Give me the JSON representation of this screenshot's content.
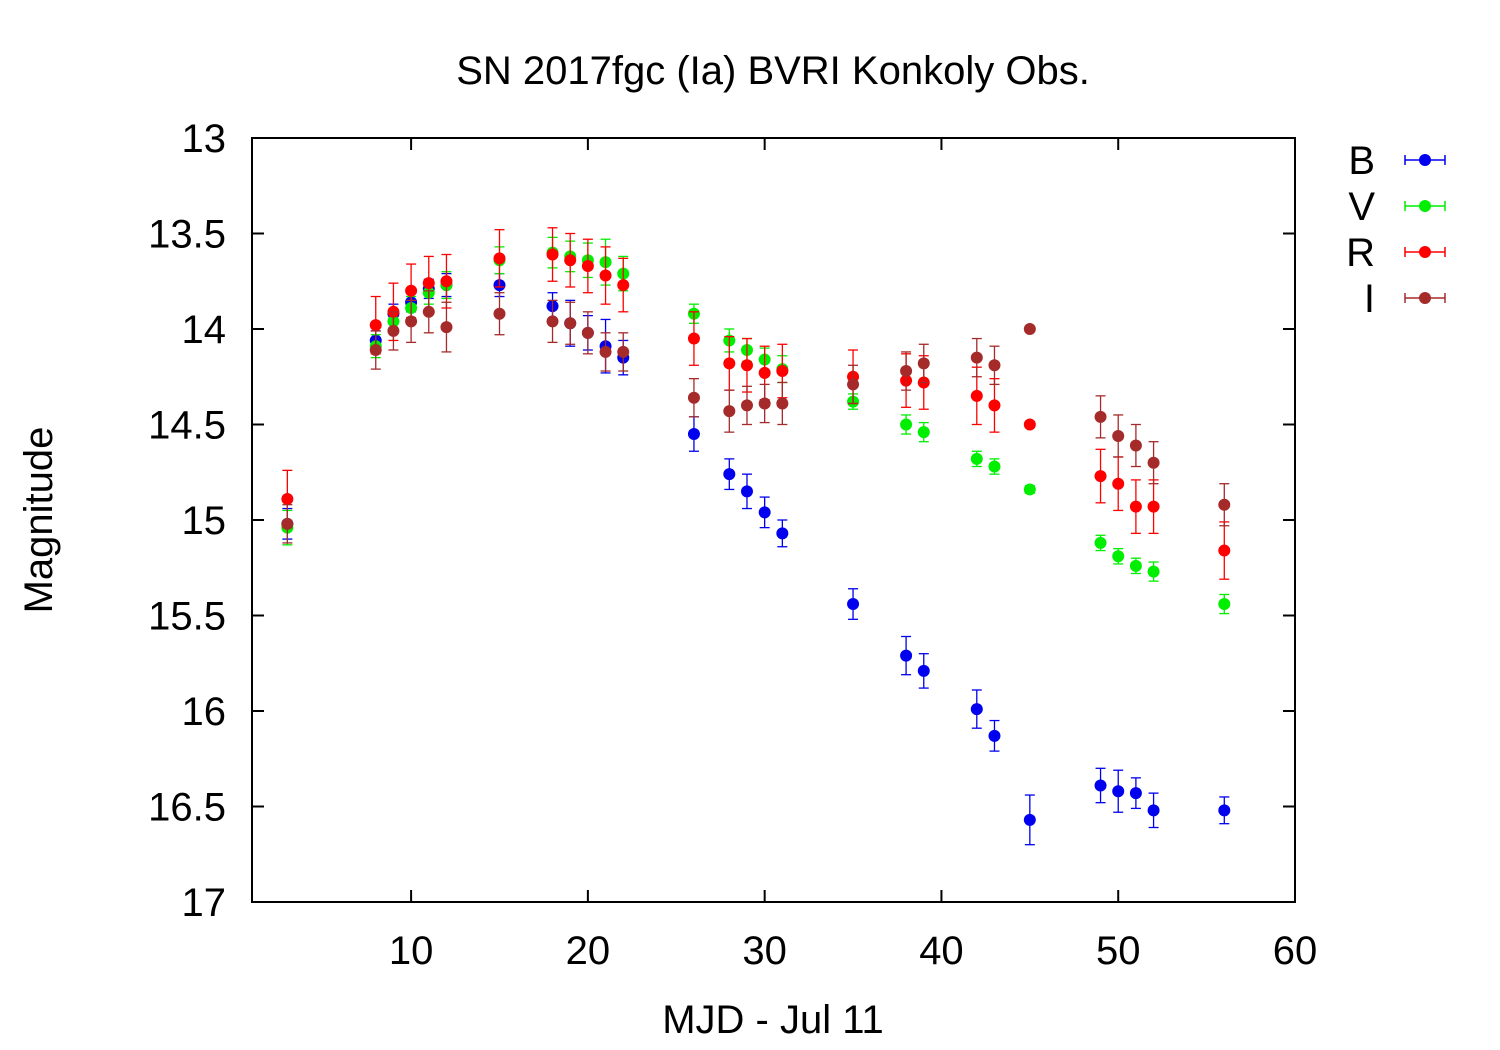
{
  "chart_data": {
    "type": "scatter",
    "title": "SN 2017fgc (Ia) BVRI Konkoly Obs.",
    "xlabel": "MJD - Jul 11",
    "ylabel": "Magnitude",
    "xlim": [
      1,
      60
    ],
    "ylim": [
      13,
      17
    ],
    "y_inverted": true,
    "x_ticks": [
      10,
      20,
      30,
      40,
      50,
      60
    ],
    "y_ticks": [
      13,
      13.5,
      14,
      14.5,
      15,
      15.5,
      16,
      16.5,
      17
    ],
    "grid": false,
    "legend_position": "outside-right",
    "error_bars": true,
    "series": [
      {
        "name": "B",
        "color": "#0000ee",
        "points": [
          {
            "x": 3,
            "y": 15.02,
            "err": 0.08
          },
          {
            "x": 8,
            "y": 14.06,
            "err": 0.05
          },
          {
            "x": 9,
            "y": 13.92,
            "err": 0.05
          },
          {
            "x": 10,
            "y": 13.86,
            "err": 0.05
          },
          {
            "x": 11,
            "y": 13.79,
            "err": 0.05
          },
          {
            "x": 12,
            "y": 13.77,
            "err": 0.06
          },
          {
            "x": 15,
            "y": 13.77,
            "err": 0.06
          },
          {
            "x": 18,
            "y": 13.88,
            "err": 0.07
          },
          {
            "x": 19,
            "y": 13.97,
            "err": 0.12
          },
          {
            "x": 20,
            "y": 14.02,
            "err": 0.09
          },
          {
            "x": 21,
            "y": 14.09,
            "err": 0.14
          },
          {
            "x": 22,
            "y": 14.15,
            "err": 0.09
          },
          {
            "x": 26,
            "y": 14.55,
            "err": 0.09
          },
          {
            "x": 28,
            "y": 14.76,
            "err": 0.08
          },
          {
            "x": 29,
            "y": 14.85,
            "err": 0.09
          },
          {
            "x": 30,
            "y": 14.96,
            "err": 0.08
          },
          {
            "x": 31,
            "y": 15.07,
            "err": 0.07
          },
          {
            "x": 35,
            "y": 15.44,
            "err": 0.08
          },
          {
            "x": 38,
            "y": 15.71,
            "err": 0.1
          },
          {
            "x": 39,
            "y": 15.79,
            "err": 0.09
          },
          {
            "x": 42,
            "y": 15.99,
            "err": 0.1
          },
          {
            "x": 43,
            "y": 16.13,
            "err": 0.08
          },
          {
            "x": 45,
            "y": 16.57,
            "err": 0.13
          },
          {
            "x": 49,
            "y": 16.39,
            "err": 0.09
          },
          {
            "x": 50,
            "y": 16.42,
            "err": 0.11
          },
          {
            "x": 51,
            "y": 16.43,
            "err": 0.08
          },
          {
            "x": 52,
            "y": 16.52,
            "err": 0.09
          },
          {
            "x": 56,
            "y": 16.52,
            "err": 0.07
          }
        ]
      },
      {
        "name": "V",
        "color": "#00ee00",
        "points": [
          {
            "x": 3,
            "y": 15.04,
            "err": 0.09
          },
          {
            "x": 8,
            "y": 14.09,
            "err": 0.06
          },
          {
            "x": 9,
            "y": 13.96,
            "err": 0.06
          },
          {
            "x": 10,
            "y": 13.89,
            "err": 0.06
          },
          {
            "x": 11,
            "y": 13.81,
            "err": 0.06
          },
          {
            "x": 12,
            "y": 13.77,
            "err": 0.07
          },
          {
            "x": 15,
            "y": 13.64,
            "err": 0.07
          },
          {
            "x": 18,
            "y": 13.6,
            "err": 0.08
          },
          {
            "x": 19,
            "y": 13.62,
            "err": 0.08
          },
          {
            "x": 20,
            "y": 13.64,
            "err": 0.09
          },
          {
            "x": 21,
            "y": 13.65,
            "err": 0.12
          },
          {
            "x": 22,
            "y": 13.71,
            "err": 0.09
          },
          {
            "x": 26,
            "y": 13.92,
            "err": 0.05
          },
          {
            "x": 28,
            "y": 14.06,
            "err": 0.06
          },
          {
            "x": 29,
            "y": 14.11,
            "err": 0.06
          },
          {
            "x": 30,
            "y": 14.16,
            "err": 0.06
          },
          {
            "x": 31,
            "y": 14.21,
            "err": 0.07
          },
          {
            "x": 35,
            "y": 14.38,
            "err": 0.04
          },
          {
            "x": 38,
            "y": 14.5,
            "err": 0.05
          },
          {
            "x": 39,
            "y": 14.54,
            "err": 0.05
          },
          {
            "x": 42,
            "y": 14.68,
            "err": 0.04
          },
          {
            "x": 43,
            "y": 14.72,
            "err": 0.04
          },
          {
            "x": 45,
            "y": 14.84,
            "err": 0.02
          },
          {
            "x": 49,
            "y": 15.12,
            "err": 0.04
          },
          {
            "x": 50,
            "y": 15.19,
            "err": 0.04
          },
          {
            "x": 51,
            "y": 15.24,
            "err": 0.04
          },
          {
            "x": 52,
            "y": 15.27,
            "err": 0.05
          },
          {
            "x": 56,
            "y": 15.44,
            "err": 0.05
          }
        ]
      },
      {
        "name": "R",
        "color": "#ff0000",
        "points": [
          {
            "x": 3,
            "y": 14.89,
            "err": 0.15
          },
          {
            "x": 8,
            "y": 13.98,
            "err": 0.15
          },
          {
            "x": 9,
            "y": 13.91,
            "err": 0.15
          },
          {
            "x": 10,
            "y": 13.8,
            "err": 0.14
          },
          {
            "x": 11,
            "y": 13.76,
            "err": 0.14
          },
          {
            "x": 12,
            "y": 13.75,
            "err": 0.14
          },
          {
            "x": 15,
            "y": 13.63,
            "err": 0.15
          },
          {
            "x": 18,
            "y": 13.61,
            "err": 0.14
          },
          {
            "x": 19,
            "y": 13.64,
            "err": 0.14
          },
          {
            "x": 20,
            "y": 13.67,
            "err": 0.14
          },
          {
            "x": 21,
            "y": 13.72,
            "err": 0.15
          },
          {
            "x": 22,
            "y": 13.77,
            "err": 0.14
          },
          {
            "x": 26,
            "y": 14.05,
            "err": 0.14
          },
          {
            "x": 28,
            "y": 14.18,
            "err": 0.14
          },
          {
            "x": 29,
            "y": 14.19,
            "err": 0.14
          },
          {
            "x": 30,
            "y": 14.23,
            "err": 0.14
          },
          {
            "x": 31,
            "y": 14.22,
            "err": 0.14
          },
          {
            "x": 35,
            "y": 14.25,
            "err": 0.14
          },
          {
            "x": 38,
            "y": 14.27,
            "err": 0.14
          },
          {
            "x": 39,
            "y": 14.28,
            "err": 0.14
          },
          {
            "x": 42,
            "y": 14.35,
            "err": 0.15
          },
          {
            "x": 43,
            "y": 14.4,
            "err": 0.14
          },
          {
            "x": 45,
            "y": 14.5,
            "err": 0.01
          },
          {
            "x": 49,
            "y": 14.77,
            "err": 0.14
          },
          {
            "x": 50,
            "y": 14.81,
            "err": 0.14
          },
          {
            "x": 51,
            "y": 14.93,
            "err": 0.14
          },
          {
            "x": 52,
            "y": 14.93,
            "err": 0.14
          },
          {
            "x": 56,
            "y": 15.16,
            "err": 0.15
          }
        ]
      },
      {
        "name": "I",
        "color": "#a52a2a",
        "points": [
          {
            "x": 3,
            "y": 15.02,
            "err": 0.1
          },
          {
            "x": 8,
            "y": 14.11,
            "err": 0.1
          },
          {
            "x": 9,
            "y": 14.01,
            "err": 0.1
          },
          {
            "x": 10,
            "y": 13.96,
            "err": 0.11
          },
          {
            "x": 11,
            "y": 13.91,
            "err": 0.11
          },
          {
            "x": 12,
            "y": 13.99,
            "err": 0.13
          },
          {
            "x": 15,
            "y": 13.92,
            "err": 0.11
          },
          {
            "x": 18,
            "y": 13.96,
            "err": 0.11
          },
          {
            "x": 19,
            "y": 13.97,
            "err": 0.11
          },
          {
            "x": 20,
            "y": 14.02,
            "err": 0.11
          },
          {
            "x": 21,
            "y": 14.12,
            "err": 0.1
          },
          {
            "x": 22,
            "y": 14.12,
            "err": 0.1
          },
          {
            "x": 26,
            "y": 14.36,
            "err": 0.1
          },
          {
            "x": 28,
            "y": 14.43,
            "err": 0.11
          },
          {
            "x": 29,
            "y": 14.4,
            "err": 0.1
          },
          {
            "x": 30,
            "y": 14.39,
            "err": 0.1
          },
          {
            "x": 31,
            "y": 14.39,
            "err": 0.11
          },
          {
            "x": 35,
            "y": 14.29,
            "err": 0.1
          },
          {
            "x": 38,
            "y": 14.22,
            "err": 0.1
          },
          {
            "x": 39,
            "y": 14.18,
            "err": 0.1
          },
          {
            "x": 42,
            "y": 14.15,
            "err": 0.1
          },
          {
            "x": 43,
            "y": 14.19,
            "err": 0.1
          },
          {
            "x": 45,
            "y": 14.0,
            "err": 0.01
          },
          {
            "x": 49,
            "y": 14.46,
            "err": 0.11
          },
          {
            "x": 50,
            "y": 14.56,
            "err": 0.11
          },
          {
            "x": 51,
            "y": 14.61,
            "err": 0.11
          },
          {
            "x": 52,
            "y": 14.7,
            "err": 0.11
          },
          {
            "x": 56,
            "y": 14.92,
            "err": 0.11
          }
        ]
      }
    ]
  }
}
